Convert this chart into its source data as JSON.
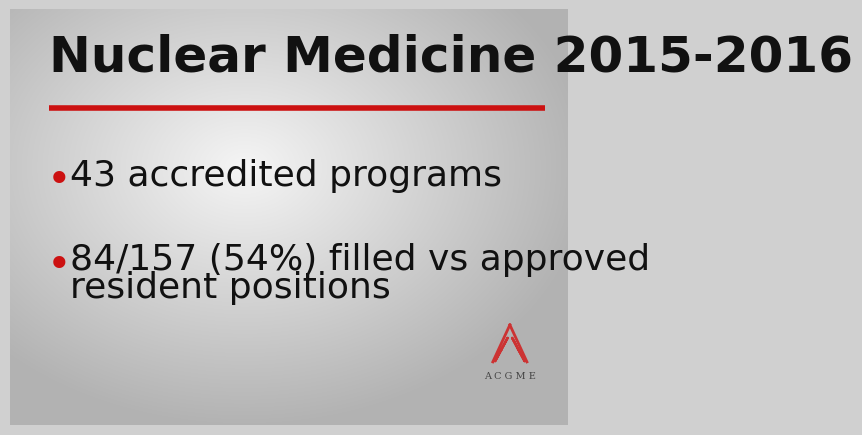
{
  "title": "Nuclear Medicine 2015-2016",
  "bullet1": "43 accredited programs",
  "bullet2_line1": "84/157 (54%) filled vs approved",
  "bullet2_line2": "resident positions",
  "title_fontsize": 36,
  "bullet_fontsize": 26,
  "title_color": "#111111",
  "bullet_color": "#111111",
  "bullet_dot_color": "#cc1111",
  "separator_color": "#cc1111",
  "acgme_color": "#cc3333",
  "acgme_label": "A C G M E"
}
